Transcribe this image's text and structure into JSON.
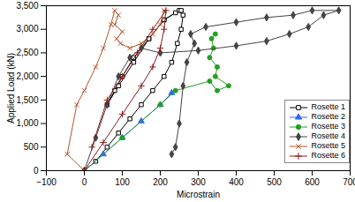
{
  "chart_data": {
    "type": "line",
    "x_label": "Microstrain",
    "y_label": "Applied Load (kN)",
    "xlim": [
      -100,
      700
    ],
    "xticks": [
      -100,
      0,
      100,
      200,
      300,
      400,
      500,
      600,
      700
    ],
    "ylim": [
      0,
      3500
    ],
    "yticks": [
      0,
      500,
      1000,
      1500,
      2000,
      2500,
      3000,
      3500
    ],
    "legend": "bottom-right",
    "grid": false,
    "series": [
      {
        "name": "Rosette 1",
        "color": "#000000",
        "marker": "square",
        "x": [
          0,
          30,
          60,
          90,
          120,
          150,
          180,
          210,
          230,
          245,
          255,
          260,
          250,
          210,
          170,
          130,
          100,
          80,
          60,
          90,
          130,
          170,
          210,
          240,
          255
        ],
        "values": [
          0,
          200,
          500,
          800,
          1100,
          1400,
          1700,
          2000,
          2300,
          2700,
          3000,
          3300,
          3400,
          3200,
          2800,
          2400,
          2000,
          1700,
          1400,
          1800,
          2300,
          2800,
          3200,
          3350,
          3400
        ]
      },
      {
        "name": "Rosette 2",
        "color": "#3366ff",
        "marker": "triangle",
        "x": [
          0,
          50,
          100,
          150,
          200,
          230
        ],
        "values": [
          0,
          350,
          700,
          1050,
          1400,
          1650
        ]
      },
      {
        "name": "Rosette 3",
        "color": "#22a022",
        "marker": "circle",
        "x": [
          0,
          100,
          200,
          240,
          330,
          350,
          380,
          345,
          350,
          330,
          340,
          335,
          345
        ],
        "values": [
          0,
          700,
          1400,
          1700,
          1900,
          1700,
          1800,
          2000,
          2200,
          2400,
          2600,
          2800,
          2900
        ]
      },
      {
        "name": "Rosette 4",
        "color": "#444444",
        "marker": "diamond",
        "x": [
          0,
          30,
          60,
          90,
          120,
          150,
          200,
          300,
          400,
          480,
          540,
          590,
          630,
          670,
          600,
          550,
          480,
          400,
          320,
          280,
          290,
          270,
          260,
          250,
          240,
          230
        ],
        "values": [
          0,
          700,
          1400,
          2000,
          2400,
          2600,
          2500,
          2550,
          2650,
          2750,
          2900,
          3050,
          3300,
          3400,
          3400,
          3300,
          3250,
          3150,
          3050,
          2900,
          2700,
          2300,
          1800,
          1000,
          500,
          350
        ]
      },
      {
        "name": "Rosette 5",
        "color": "#b5542a",
        "marker": "times",
        "x": [
          0,
          -45,
          -20,
          0,
          30,
          50,
          70,
          80,
          90,
          80,
          100,
          85,
          95,
          120,
          150,
          180,
          200,
          210
        ],
        "values": [
          0,
          350,
          1400,
          1700,
          2200,
          2600,
          3100,
          3400,
          3300,
          3100,
          2950,
          2800,
          2700,
          2600,
          2700,
          2900,
          3100,
          3400
        ]
      },
      {
        "name": "Rosette 6",
        "color": "#8b1a1a",
        "marker": "plus",
        "x": [
          0,
          50,
          100,
          150,
          180,
          200,
          210,
          215,
          180,
          140,
          100,
          60,
          20
        ],
        "values": [
          0,
          600,
          1200,
          1800,
          2200,
          2600,
          3000,
          3400,
          3000,
          2500,
          2000,
          1500,
          500
        ]
      }
    ]
  }
}
